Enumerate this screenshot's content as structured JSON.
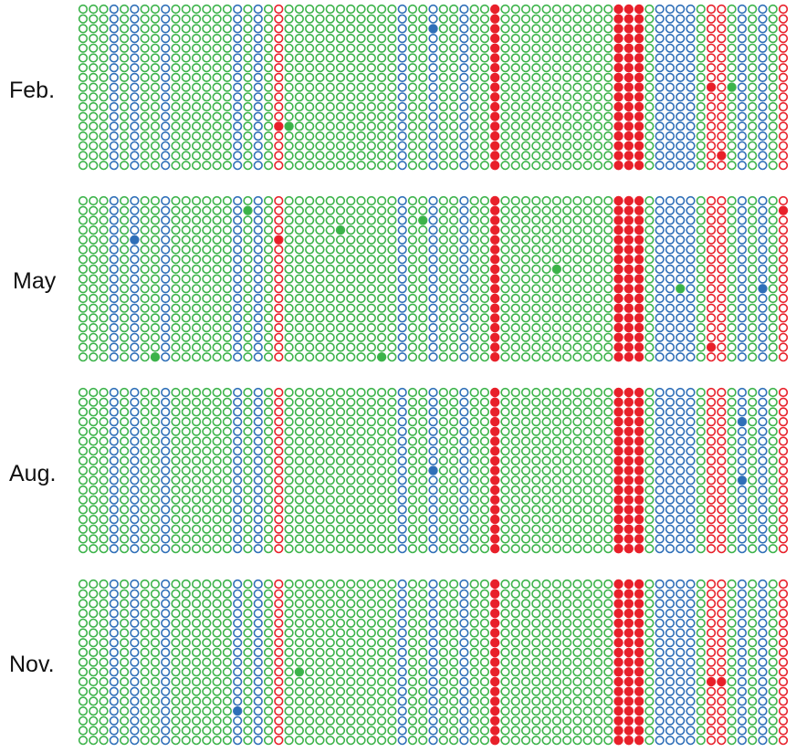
{
  "colors": {
    "green": "#3cb34a",
    "blue": "#2f6fb8",
    "red": "#e8202a"
  },
  "legend_free_note": "",
  "panels": [
    {
      "label": "Feb.",
      "filled_dots": [
        {
          "column": 34,
          "row": 2,
          "color": "blue"
        },
        {
          "column": 19,
          "row": 12,
          "color": "red"
        },
        {
          "column": 20,
          "row": 12,
          "color": "green"
        },
        {
          "column": 61,
          "row": 8,
          "color": "red"
        },
        {
          "column": 63,
          "row": 8,
          "color": "green"
        },
        {
          "column": 62,
          "row": 15,
          "color": "red"
        }
      ]
    },
    {
      "label": "May",
      "filled_dots": [
        {
          "column": 16,
          "row": 1,
          "color": "green"
        },
        {
          "column": 5,
          "row": 4,
          "color": "blue"
        },
        {
          "column": 19,
          "row": 4,
          "color": "red"
        },
        {
          "column": 25,
          "row": 3,
          "color": "green"
        },
        {
          "column": 33,
          "row": 2,
          "color": "green"
        },
        {
          "column": 46,
          "row": 7,
          "color": "green"
        },
        {
          "column": 58,
          "row": 9,
          "color": "green"
        },
        {
          "column": 66,
          "row": 9,
          "color": "blue"
        },
        {
          "column": 68,
          "row": 1,
          "color": "red"
        },
        {
          "column": 61,
          "row": 15,
          "color": "red"
        },
        {
          "column": 7,
          "row": 16,
          "color": "green"
        },
        {
          "column": 29,
          "row": 16,
          "color": "green"
        }
      ]
    },
    {
      "label": "Aug.",
      "filled_dots": [
        {
          "column": 34,
          "row": 8,
          "color": "blue"
        },
        {
          "column": 64,
          "row": 3,
          "color": "blue"
        },
        {
          "column": 64,
          "row": 9,
          "color": "blue"
        }
      ]
    },
    {
      "label": "Nov.",
      "filled_dots": [
        {
          "column": 21,
          "row": 9,
          "color": "green"
        },
        {
          "column": 61,
          "row": 10,
          "color": "red"
        },
        {
          "column": 62,
          "row": 10,
          "color": "red"
        },
        {
          "column": 15,
          "row": 13,
          "color": "blue"
        }
      ]
    }
  ],
  "grid": {
    "columns": 72,
    "rows": 17,
    "column_colors": {
      "blue": [
        3,
        5,
        8,
        15,
        17,
        31,
        34,
        37,
        56,
        57,
        58,
        59,
        64,
        66
      ],
      "red_outline": [
        19,
        61,
        62,
        68
      ],
      "red_filled": [
        40,
        52,
        53,
        54
      ]
    }
  }
}
